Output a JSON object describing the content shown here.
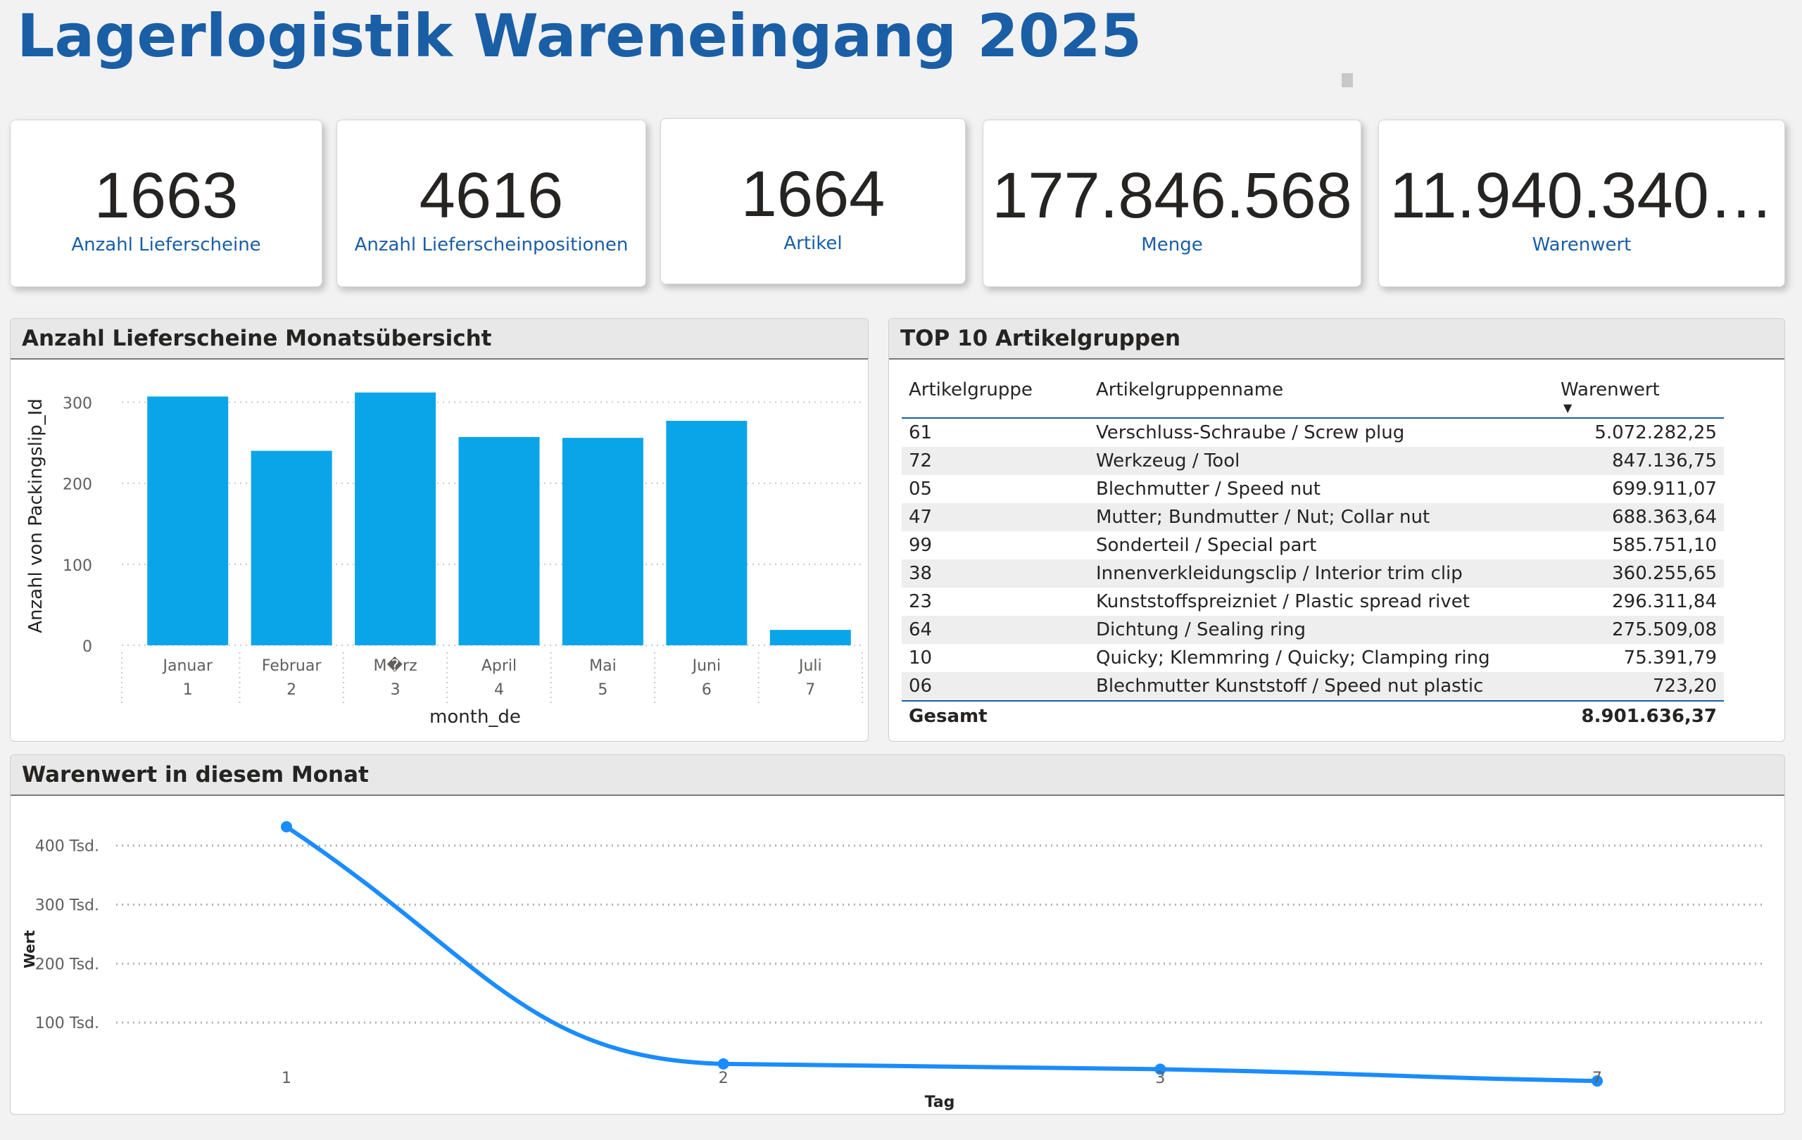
{
  "page": {
    "title": "Lagerlogistik Wareneingang 2025"
  },
  "kpis": [
    {
      "value": "1663",
      "label": "Anzahl Lieferscheine"
    },
    {
      "value": "4616",
      "label": "Anzahl Lieferscheinpositionen"
    },
    {
      "value": "1664",
      "label": "Artikel"
    },
    {
      "value": "177.846.568",
      "label": "Menge"
    },
    {
      "value": "11.940.340…",
      "label": "Warenwert"
    }
  ],
  "bar_panel": {
    "title": "Anzahl Lieferscheine Monatsübersicht"
  },
  "top10": {
    "title": "TOP 10 Artikelgruppen",
    "columns": [
      "Artikelgruppe",
      "Artikelgruppenname",
      "Warenwert"
    ],
    "sort_icon": "sort-descending-icon",
    "rows": [
      [
        "61",
        "Verschluss-Schraube / Screw plug",
        "5.072.282,25"
      ],
      [
        "72",
        "Werkzeug / Tool",
        "847.136,75"
      ],
      [
        "05",
        "Blechmutter / Speed nut",
        "699.911,07"
      ],
      [
        "47",
        "Mutter; Bundmutter / Nut; Collar nut",
        "688.363,64"
      ],
      [
        "99",
        "Sonderteil / Special part",
        "585.751,10"
      ],
      [
        "38",
        "Innenverkleidungsclip / Interior trim clip",
        "360.255,65"
      ],
      [
        "23",
        "Kunststoffspreizniet / Plastic spread rivet",
        "296.311,84"
      ],
      [
        "64",
        "Dichtung / Sealing ring",
        "275.509,08"
      ],
      [
        "10",
        "Quicky; Klemmring / Quicky; Clamping ring",
        "75.391,79"
      ],
      [
        "06",
        "Blechmutter Kunststoff / Speed nut plastic",
        "723,20"
      ]
    ],
    "total_label": "Gesamt",
    "total_value": "8.901.636,37"
  },
  "line_panel": {
    "title": "Warenwert in diesem Monat"
  },
  "chart_data": [
    {
      "type": "bar",
      "categories": [
        "Januar",
        "Februar",
        "M�rz",
        "April",
        "Mai",
        "Juni",
        "Juli"
      ],
      "category_numbers": [
        "1",
        "2",
        "3",
        "4",
        "5",
        "6",
        "7"
      ],
      "values": [
        307,
        240,
        312,
        257,
        256,
        277,
        19
      ],
      "xlabel": "month_de",
      "ylabel": "Anzahl von Packingslip_Id",
      "yticks": [
        0,
        100,
        200,
        300
      ],
      "ylim": [
        0,
        330
      ],
      "color": "#0aa5e8",
      "grid": true
    },
    {
      "type": "line",
      "x": [
        "1",
        "2",
        "3",
        "7"
      ],
      "values": [
        432000,
        30000,
        21000,
        1000
      ],
      "xlabel": "Tag",
      "ylabel": "Wert",
      "yticks": [
        100000,
        200000,
        300000,
        400000
      ],
      "ytick_labels": [
        "100 Tsd.",
        "200 Tsd.",
        "300 Tsd.",
        "400 Tsd."
      ],
      "ylim": [
        0,
        470000
      ],
      "color": "#1a8cff",
      "grid": true
    }
  ]
}
